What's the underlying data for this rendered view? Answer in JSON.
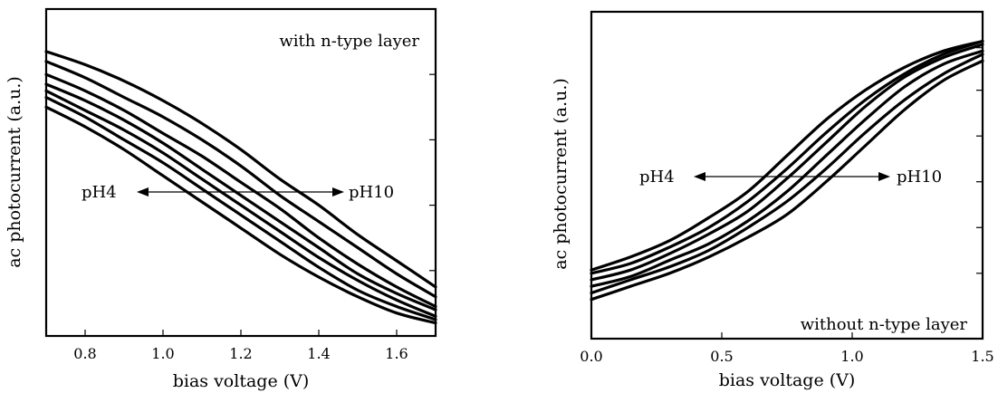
{
  "chart_data": [
    {
      "type": "line",
      "xlabel": "bias voltage (V)",
      "ylabel": "ac photocurrent (a.u.)",
      "xlim": [
        0.7,
        1.7
      ],
      "ylim": [
        0,
        1
      ],
      "xticks": [
        0.8,
        1.0,
        1.2,
        1.4,
        1.6
      ],
      "xtick_labels": [
        "0.8",
        "1.0",
        "1.2",
        "1.4",
        "1.6"
      ],
      "yticks": [
        0.2,
        0.4,
        0.6,
        0.8
      ],
      "annotations": {
        "condition": "with n-type layer",
        "arrow_left": "pH4",
        "arrow_right": "pH10"
      },
      "series": [
        {
          "x": [
            0.7,
            0.8,
            0.9,
            1.0,
            1.1,
            1.2,
            1.3,
            1.4,
            1.5,
            1.6,
            1.7
          ],
          "y": [
            0.7,
            0.64,
            0.57,
            0.49,
            0.41,
            0.33,
            0.25,
            0.18,
            0.12,
            0.07,
            0.04
          ]
        },
        {
          "x": [
            0.7,
            0.8,
            0.9,
            1.0,
            1.1,
            1.2,
            1.3,
            1.4,
            1.5,
            1.6,
            1.7
          ],
          "y": [
            0.73,
            0.67,
            0.6,
            0.53,
            0.45,
            0.37,
            0.29,
            0.21,
            0.14,
            0.09,
            0.05
          ]
        },
        {
          "x": [
            0.7,
            0.8,
            0.9,
            1.0,
            1.1,
            1.2,
            1.3,
            1.4,
            1.5,
            1.6,
            1.7
          ],
          "y": [
            0.75,
            0.69,
            0.63,
            0.56,
            0.48,
            0.4,
            0.32,
            0.24,
            0.17,
            0.11,
            0.06
          ]
        },
        {
          "x": [
            0.7,
            0.8,
            0.9,
            1.0,
            1.1,
            1.2,
            1.3,
            1.4,
            1.5,
            1.6,
            1.7
          ],
          "y": [
            0.77,
            0.72,
            0.66,
            0.59,
            0.51,
            0.43,
            0.35,
            0.27,
            0.19,
            0.13,
            0.08
          ]
        },
        {
          "x": [
            0.7,
            0.8,
            0.9,
            1.0,
            1.1,
            1.2,
            1.3,
            1.4,
            1.5,
            1.6,
            1.7
          ],
          "y": [
            0.8,
            0.75,
            0.69,
            0.62,
            0.55,
            0.47,
            0.39,
            0.3,
            0.22,
            0.15,
            0.09
          ]
        },
        {
          "x": [
            0.7,
            0.8,
            0.9,
            1.0,
            1.1,
            1.2,
            1.3,
            1.4,
            1.5,
            1.6,
            1.7
          ],
          "y": [
            0.84,
            0.79,
            0.73,
            0.67,
            0.6,
            0.52,
            0.43,
            0.35,
            0.27,
            0.19,
            0.12
          ]
        },
        {
          "x": [
            0.7,
            0.8,
            0.9,
            1.0,
            1.1,
            1.2,
            1.3,
            1.4,
            1.5,
            1.6,
            1.7
          ],
          "y": [
            0.87,
            0.83,
            0.78,
            0.72,
            0.65,
            0.57,
            0.48,
            0.4,
            0.31,
            0.23,
            0.15
          ]
        }
      ]
    },
    {
      "type": "line",
      "xlabel": "bias voltage (V)",
      "ylabel": "ac photocurrent (a.u.)",
      "xlim": [
        0.0,
        1.5
      ],
      "ylim": [
        0,
        1
      ],
      "xticks": [
        0.0,
        0.5,
        1.0,
        1.5
      ],
      "xtick_labels": [
        "0.0",
        "0.5",
        "1.0",
        "1.5"
      ],
      "yticks": [
        0.2,
        0.34,
        0.48,
        0.62,
        0.76,
        0.89
      ],
      "annotations": {
        "condition": "without n-type layer",
        "arrow_left": "pH4",
        "arrow_right": "pH10"
      },
      "series": [
        {
          "x": [
            0.0,
            0.15,
            0.3,
            0.45,
            0.6,
            0.75,
            0.9,
            1.05,
            1.2,
            1.35,
            1.5
          ],
          "y": [
            0.21,
            0.25,
            0.3,
            0.37,
            0.45,
            0.56,
            0.67,
            0.76,
            0.83,
            0.88,
            0.91
          ]
        },
        {
          "x": [
            0.0,
            0.15,
            0.3,
            0.45,
            0.6,
            0.75,
            0.9,
            1.05,
            1.2,
            1.35,
            1.5
          ],
          "y": [
            0.2,
            0.23,
            0.28,
            0.34,
            0.42,
            0.52,
            0.63,
            0.73,
            0.81,
            0.87,
            0.91
          ]
        },
        {
          "x": [
            0.0,
            0.15,
            0.3,
            0.45,
            0.6,
            0.75,
            0.9,
            1.05,
            1.2,
            1.35,
            1.5
          ],
          "y": [
            0.18,
            0.21,
            0.26,
            0.32,
            0.39,
            0.49,
            0.6,
            0.71,
            0.8,
            0.86,
            0.9
          ]
        },
        {
          "x": [
            0.0,
            0.15,
            0.3,
            0.45,
            0.6,
            0.75,
            0.9,
            1.05,
            1.2,
            1.35,
            1.5
          ],
          "y": [
            0.16,
            0.19,
            0.24,
            0.29,
            0.36,
            0.45,
            0.56,
            0.67,
            0.77,
            0.84,
            0.88
          ]
        },
        {
          "x": [
            0.0,
            0.15,
            0.3,
            0.45,
            0.6,
            0.75,
            0.9,
            1.05,
            1.2,
            1.35,
            1.5
          ],
          "y": [
            0.14,
            0.18,
            0.22,
            0.27,
            0.34,
            0.42,
            0.52,
            0.63,
            0.73,
            0.81,
            0.87
          ]
        },
        {
          "x": [
            0.0,
            0.15,
            0.3,
            0.45,
            0.6,
            0.75,
            0.9,
            1.05,
            1.2,
            1.35,
            1.5
          ],
          "y": [
            0.12,
            0.16,
            0.2,
            0.25,
            0.31,
            0.38,
            0.48,
            0.59,
            0.7,
            0.79,
            0.85
          ]
        }
      ]
    }
  ]
}
